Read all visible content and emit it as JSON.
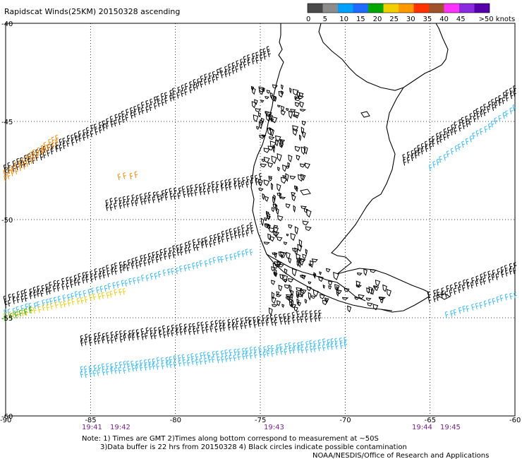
{
  "title": "Rapidscat Winds(25KM) 20150328 ascending",
  "legend": {
    "labels": [
      "0",
      "5",
      "10",
      "15",
      "20",
      "25",
      "30",
      "35",
      "40",
      "45",
      ">50 knots"
    ],
    "colors": [
      "#4a4a4a",
      "#8c8c8c",
      "#00a0ff",
      "#1e6cff",
      "#00a800",
      "#f0d000",
      "#ff9900",
      "#ff3300",
      "#a0522d",
      "#ff33ff",
      "#8a2be2",
      "#5500aa"
    ]
  },
  "axes": {
    "lat_labels": [
      "-40",
      "-45",
      "-50",
      "-55",
      "-60"
    ],
    "lon_labels": [
      "-90",
      "-85",
      "-80",
      "-75",
      "-70",
      "-65",
      "-60"
    ]
  },
  "times": [
    "19:41",
    "19:42",
    "19:43",
    "19:44",
    "19:45"
  ],
  "notes": {
    "line1": "Note: 1) Times are GMT 2)Times along bottom correspond to measurement at ~50S",
    "line2": "3)Data buffer is 22 hrs from 20150328 4) Black circles indicate possible contamination",
    "line3": "NOAA/NESDIS/Office of Research and Applications"
  },
  "wind_colors": {
    "calm": "#000000",
    "light_blue": "#33bbff",
    "blue": "#2277ee",
    "green": "#22aa00",
    "yellow": "#eecc00",
    "orange": "#ff8800",
    "red": "#ff3300"
  },
  "swaths": [
    {
      "name": "swath-north",
      "lat0": -47.5,
      "lon0": -90,
      "lat1": -41.5,
      "lon1": -74.5,
      "color": "calm",
      "rows": 2
    },
    {
      "name": "swath-north-warm",
      "lat0": -47.8,
      "lon0": -90,
      "lat1": -46.0,
      "lon1": -87.0,
      "color": "orange",
      "rows": 2
    },
    {
      "name": "swath-mid",
      "lat0": -49.3,
      "lon0": -84.0,
      "lat1": -48.0,
      "lon1": -75.0,
      "color": "calm",
      "rows": 2
    },
    {
      "name": "swath-mid-orange",
      "lat0": -48.0,
      "lon0": -83.3,
      "lat1": -47.9,
      "lon1": -82.3,
      "color": "orange",
      "rows": 1
    },
    {
      "name": "swath-south-a",
      "lat0": -54.2,
      "lon0": -90,
      "lat1": -50.5,
      "lon1": -75.5,
      "color": "calm",
      "rows": 2
    },
    {
      "name": "swath-south-b",
      "lat0": -54.9,
      "lon0": -90,
      "lat1": -51.8,
      "lon1": -75.5,
      "color": "light_blue",
      "rows": 1
    },
    {
      "name": "swath-south-warm",
      "lat0": -55.1,
      "lon0": -90,
      "lat1": -53.8,
      "lon1": -83.0,
      "color": "yellow",
      "rows": 1
    },
    {
      "name": "swath-south-green",
      "lat0": -55.2,
      "lon0": -90,
      "lat1": -54.8,
      "lon1": -88.5,
      "color": "green",
      "rows": 1
    },
    {
      "name": "swath-bottom-a",
      "lat0": -56.2,
      "lon0": -85.5,
      "lat1": -54.9,
      "lon1": -71.5,
      "color": "calm",
      "rows": 2
    },
    {
      "name": "swath-bottom-b",
      "lat0": -57.8,
      "lon0": -85.5,
      "lat1": -56.3,
      "lon1": -70.0,
      "color": "light_blue",
      "rows": 2
    },
    {
      "name": "swath-east-a",
      "lat0": -47.0,
      "lon0": -66.5,
      "lat1": -43.5,
      "lon1": -60.0,
      "color": "calm",
      "rows": 2
    },
    {
      "name": "swath-east-b",
      "lat0": -47.5,
      "lon0": -65.0,
      "lat1": -44.5,
      "lon1": -60.0,
      "color": "light_blue",
      "rows": 1
    },
    {
      "name": "swath-east-c",
      "lat0": -54.0,
      "lon0": -65.0,
      "lat1": -52.5,
      "lon1": -60.0,
      "color": "calm",
      "rows": 2
    },
    {
      "name": "swath-east-d",
      "lat0": -55.0,
      "lon0": -64.0,
      "lat1": -54.0,
      "lon1": -60.0,
      "color": "light_blue",
      "rows": 1
    }
  ]
}
